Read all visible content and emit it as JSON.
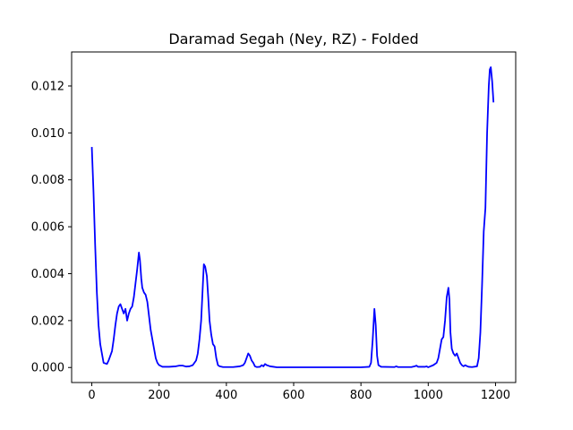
{
  "chart_data": {
    "type": "line",
    "title": "Daramad Segah (Ney, RZ) - Folded",
    "xlabel": "",
    "ylabel": "",
    "xlim": [
      -60,
      1260
    ],
    "ylim": [
      -0.00064,
      0.01345
    ],
    "xticks": [
      0,
      200,
      400,
      600,
      800,
      1000,
      1200
    ],
    "xtick_labels": [
      "0",
      "200",
      "400",
      "600",
      "800",
      "1000",
      "1200"
    ],
    "yticks": [
      0.0,
      0.002,
      0.004,
      0.006,
      0.008,
      0.01,
      0.012
    ],
    "ytick_labels": [
      "0.000",
      "0.002",
      "0.004",
      "0.006",
      "0.008",
      "0.010",
      "0.012"
    ],
    "grid": false,
    "series": [
      {
        "color": "#0000ff",
        "points": [
          [
            0,
            0.0094
          ],
          [
            5,
            0.0075
          ],
          [
            10,
            0.0052
          ],
          [
            15,
            0.0032
          ],
          [
            20,
            0.0018
          ],
          [
            25,
            0.001
          ],
          [
            30,
            0.0006
          ],
          [
            35,
            0.0002
          ],
          [
            45,
            0.00015
          ],
          [
            50,
            0.0003
          ],
          [
            55,
            0.0005
          ],
          [
            60,
            0.0007
          ],
          [
            65,
            0.0012
          ],
          [
            70,
            0.0018
          ],
          [
            75,
            0.0023
          ],
          [
            80,
            0.0026
          ],
          [
            85,
            0.0027
          ],
          [
            90,
            0.0025
          ],
          [
            95,
            0.0023
          ],
          [
            100,
            0.0025
          ],
          [
            105,
            0.002
          ],
          [
            110,
            0.0023
          ],
          [
            115,
            0.0025
          ],
          [
            120,
            0.0026
          ],
          [
            125,
            0.003
          ],
          [
            130,
            0.0036
          ],
          [
            135,
            0.0042
          ],
          [
            140,
            0.0049
          ],
          [
            143,
            0.0046
          ],
          [
            147,
            0.0038
          ],
          [
            150,
            0.0034
          ],
          [
            155,
            0.0032
          ],
          [
            160,
            0.0031
          ],
          [
            165,
            0.0028
          ],
          [
            170,
            0.0022
          ],
          [
            175,
            0.0016
          ],
          [
            180,
            0.0012
          ],
          [
            185,
            0.0008
          ],
          [
            190,
            0.0004
          ],
          [
            195,
            0.0002
          ],
          [
            200,
            0.0001
          ],
          [
            210,
            3e-05
          ],
          [
            230,
            3e-05
          ],
          [
            250,
            5e-05
          ],
          [
            260,
            8e-05
          ],
          [
            270,
            8e-05
          ],
          [
            280,
            4e-05
          ],
          [
            290,
            5e-05
          ],
          [
            300,
            0.0001
          ],
          [
            310,
            0.0003
          ],
          [
            315,
            0.0006
          ],
          [
            320,
            0.0012
          ],
          [
            325,
            0.002
          ],
          [
            330,
            0.0035
          ],
          [
            333,
            0.0044
          ],
          [
            337,
            0.0043
          ],
          [
            342,
            0.0039
          ],
          [
            346,
            0.003
          ],
          [
            350,
            0.002
          ],
          [
            355,
            0.0014
          ],
          [
            360,
            0.001
          ],
          [
            365,
            0.0009
          ],
          [
            370,
            0.0004
          ],
          [
            375,
            0.0001
          ],
          [
            380,
            5e-05
          ],
          [
            390,
            2e-05
          ],
          [
            420,
            2e-05
          ],
          [
            440,
            5e-05
          ],
          [
            450,
            0.0001
          ],
          [
            455,
            0.0002
          ],
          [
            460,
            0.0004
          ],
          [
            465,
            0.0006
          ],
          [
            470,
            0.0005
          ],
          [
            475,
            0.0003
          ],
          [
            480,
            0.0002
          ],
          [
            485,
            5e-05
          ],
          [
            490,
            2e-05
          ],
          [
            500,
            3e-05
          ],
          [
            505,
            0.0001
          ],
          [
            510,
            5e-05
          ],
          [
            515,
            0.00015
          ],
          [
            520,
            0.0001
          ],
          [
            530,
            5e-05
          ],
          [
            540,
            3e-05
          ],
          [
            550,
            1e-05
          ],
          [
            700,
            1e-05
          ],
          [
            800,
            1e-05
          ],
          [
            825,
            3e-05
          ],
          [
            830,
            0.0002
          ],
          [
            835,
            0.0012
          ],
          [
            840,
            0.0025
          ],
          [
            844,
            0.0018
          ],
          [
            848,
            0.0005
          ],
          [
            852,
            0.0001
          ],
          [
            860,
            3e-05
          ],
          [
            900,
            2e-05
          ],
          [
            905,
            5e-05
          ],
          [
            910,
            2e-05
          ],
          [
            950,
            2e-05
          ],
          [
            960,
            5e-05
          ],
          [
            965,
            8e-05
          ],
          [
            970,
            3e-05
          ],
          [
            990,
            3e-05
          ],
          [
            995,
            5e-05
          ],
          [
            1000,
            1e-05
          ],
          [
            1005,
            4e-05
          ],
          [
            1015,
            0.0001
          ],
          [
            1025,
            0.0002
          ],
          [
            1030,
            0.0004
          ],
          [
            1035,
            0.0008
          ],
          [
            1040,
            0.0012
          ],
          [
            1045,
            0.0013
          ],
          [
            1050,
            0.002
          ],
          [
            1055,
            0.003
          ],
          [
            1060,
            0.0034
          ],
          [
            1063,
            0.0029
          ],
          [
            1066,
            0.0015
          ],
          [
            1070,
            0.0008
          ],
          [
            1075,
            0.0006
          ],
          [
            1080,
            0.0005
          ],
          [
            1085,
            0.0006
          ],
          [
            1090,
            0.0004
          ],
          [
            1095,
            0.0002
          ],
          [
            1100,
            0.0001
          ],
          [
            1105,
            5e-05
          ],
          [
            1110,
            0.0001
          ],
          [
            1115,
            6e-05
          ],
          [
            1120,
            3e-05
          ],
          [
            1130,
            2e-05
          ],
          [
            1145,
            5e-05
          ],
          [
            1150,
            0.0004
          ],
          [
            1155,
            0.0015
          ],
          [
            1160,
            0.0035
          ],
          [
            1165,
            0.0058
          ],
          [
            1170,
            0.0068
          ],
          [
            1175,
            0.01
          ],
          [
            1180,
            0.012
          ],
          [
            1183,
            0.0127
          ],
          [
            1186,
            0.0128
          ],
          [
            1190,
            0.0122
          ],
          [
            1194,
            0.0113
          ]
        ]
      }
    ]
  }
}
